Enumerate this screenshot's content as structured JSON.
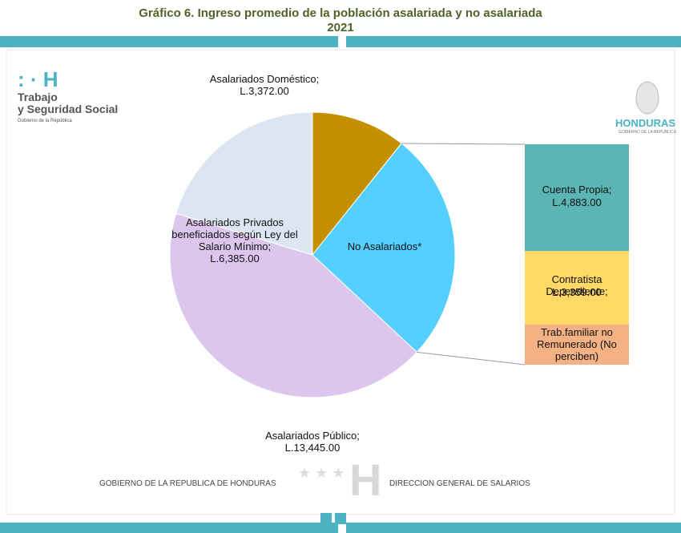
{
  "chart_data": {
    "type": "pie_of_bar",
    "title": "Gráfico 6. Ingreso promedio de la población asalariada y no asalariada",
    "subtitle": "2021",
    "pie": {
      "categories": [
        "Asalariados Doméstico;",
        "No Asalariados*",
        "Asalariados Público;",
        "Asalariados Privados beneficiados según Ley del Salario Mínimo;"
      ],
      "values": [
        3372,
        null,
        13445,
        6385
      ],
      "value_labels": [
        "L.3,372.00",
        null,
        "L.13,445.00",
        "L.6,385.00"
      ],
      "colors": [
        "#c49000",
        "#55cfff",
        "#dcc6ee",
        "#dce6f2"
      ]
    },
    "bar": {
      "categories": [
        "Cuenta Propia;",
        "Contratista Dependiente;",
        "Trab.familiar no Remunerado (No perciben)"
      ],
      "values": [
        4883,
        3359,
        null
      ],
      "value_labels": [
        "L.4,883.00",
        "L.3,359.00",
        null
      ],
      "colors": [
        "#5bb5b5",
        "#ffd966",
        "#f4b183"
      ]
    }
  },
  "branding": {
    "left_logo": [
      "Trabajo",
      "y Seguridad Social",
      "Gobierno de la República"
    ],
    "right_logo": [
      "HONDURAS",
      "GOBIERNO DE LA REPÚBLICA"
    ],
    "footer_left": "GOBIERNO DE LA REPUBLICA DE HONDURAS",
    "footer_right": "DIRECCION GENERAL DE SALARIOS"
  }
}
